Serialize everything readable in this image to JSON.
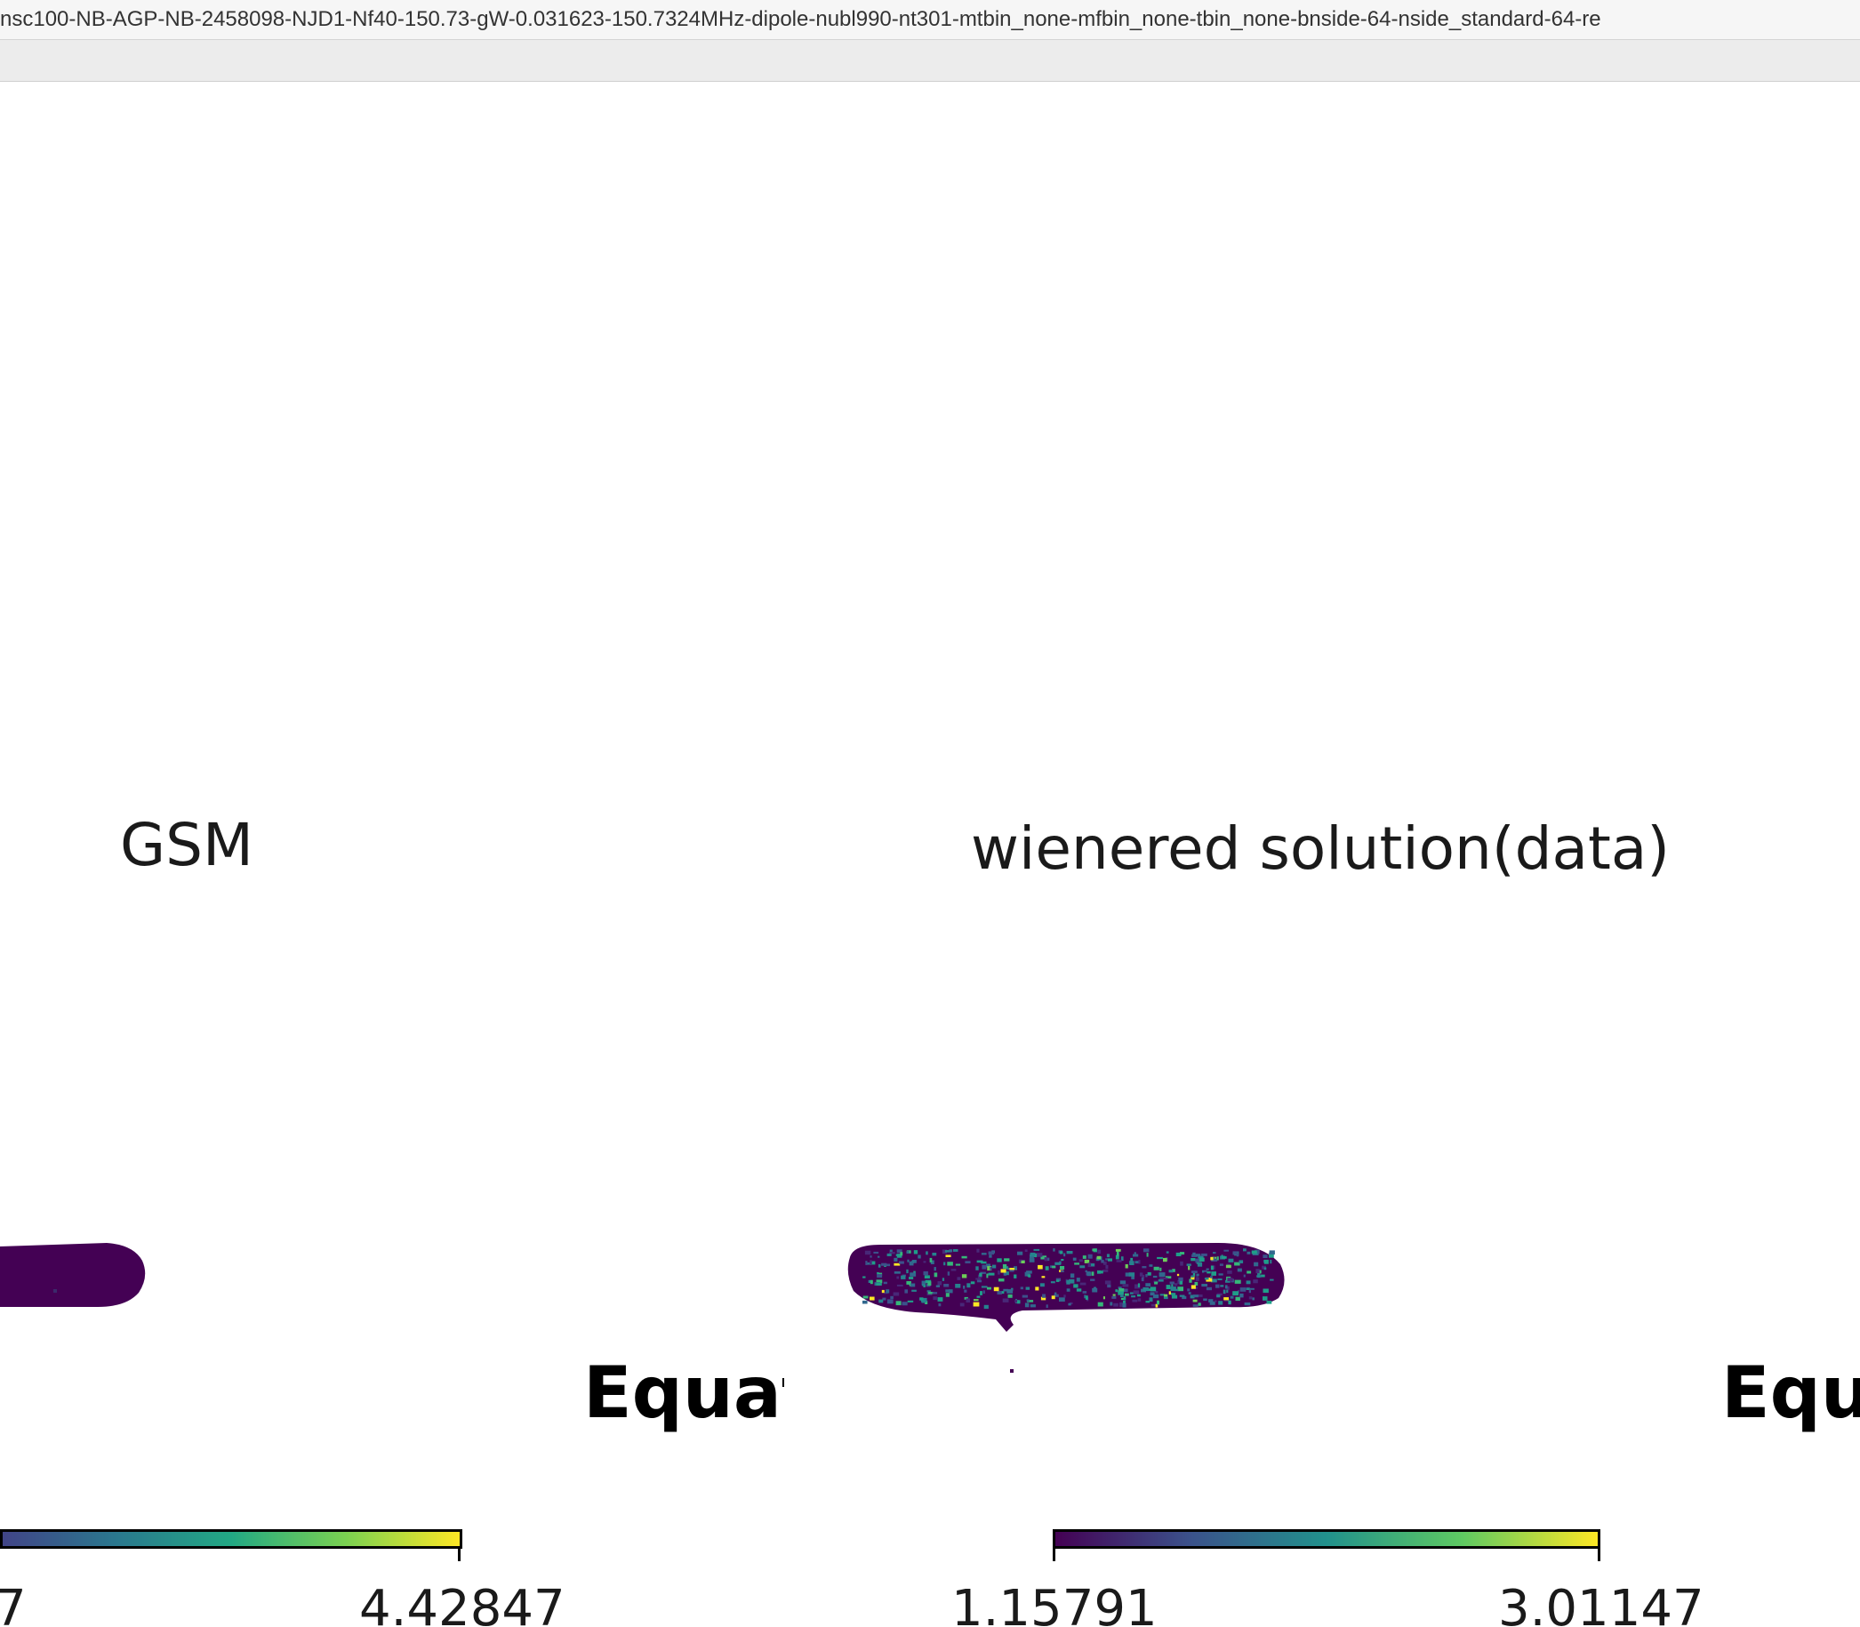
{
  "window": {
    "title": "nsc100-NB-AGP-NB-2458098-NJD1-Nf40-150.73-gW-0.031623-150.7324MHz-dipole-nubl990-nt301-mtbin_none-mfbin_none-tbin_none-bnside-64-nside_standard-64-re"
  },
  "panels": [
    {
      "title": "GSM",
      "graticule_label": "Equat",
      "colorbar": {
        "min_label": "7",
        "max_label": "4.42847",
        "colormap": "viridis"
      }
    },
    {
      "title": "wienered solution(data)",
      "graticule_label": "Equ",
      "colorbar": {
        "min_label": "1.15791",
        "max_label": "3.01147",
        "colormap": "viridis"
      }
    }
  ],
  "colors": {
    "viridis_low": "#440154",
    "viridis_mid": "#21918c",
    "viridis_high": "#fde725"
  }
}
